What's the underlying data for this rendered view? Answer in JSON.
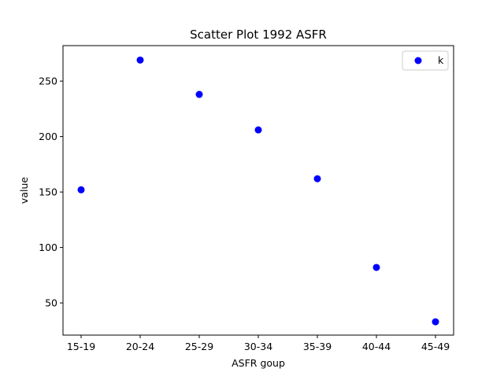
{
  "chart_data": {
    "type": "scatter",
    "title": "Scatter Plot 1992 ASFR",
    "xlabel": "ASFR goup",
    "ylabel": "value",
    "categories": [
      "15-19",
      "20-24",
      "25-29",
      "30-34",
      "35-39",
      "40-44",
      "45-49"
    ],
    "series": [
      {
        "name": "k",
        "values": [
          152,
          269,
          238,
          206,
          162,
          82,
          33
        ],
        "color": "#0000ff"
      }
    ],
    "yticks": [
      50,
      100,
      150,
      200,
      250
    ],
    "ylim": [
      21,
      282
    ],
    "grid": false,
    "legend": "top-right"
  }
}
